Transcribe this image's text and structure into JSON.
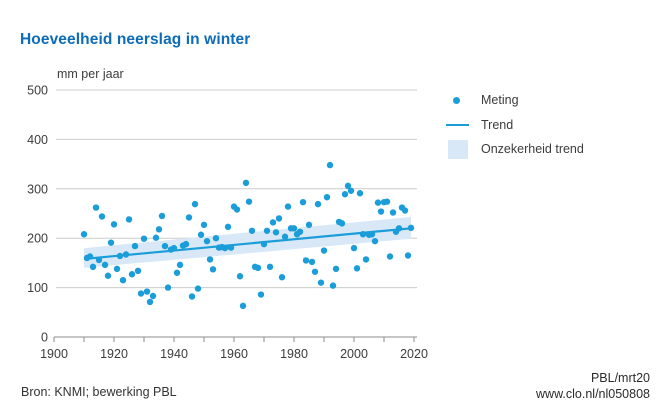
{
  "page": {
    "title": "Hoeveelheid neerslag in winter",
    "unit_label": "mm per jaar"
  },
  "legend": {
    "items": [
      {
        "label": "Meting",
        "swatch": "dot"
      },
      {
        "label": "Trend",
        "swatch": "line"
      },
      {
        "label": "Onzekerheid trend",
        "swatch": "band"
      }
    ]
  },
  "footer": {
    "source": "Bron: KNMI; bewerking PBL",
    "credit": "PBL/mrt20",
    "url": "www.clo.nl/nl050808"
  },
  "colors": {
    "title_blue": "#0c6cba",
    "point_blue": "#1b9dd9",
    "trend_blue": "#1b9dd9",
    "band_blue": "#d9e8f7",
    "grid_gray": "#cccccc",
    "axis_gray": "#8c8c8c",
    "text_gray": "#3c3c3c"
  },
  "chart_data": {
    "type": "scatter",
    "title": "Hoeveelheid neerslag in winter",
    "xlabel": "",
    "ylabel": "mm per jaar",
    "xlim": [
      1900,
      2020
    ],
    "ylim": [
      0,
      500
    ],
    "x_ticks": [
      1900,
      1920,
      1940,
      1960,
      1980,
      2000,
      2020
    ],
    "x_minor_tick_step": 10,
    "y_ticks": [
      0,
      100,
      200,
      300,
      400,
      500
    ],
    "grid": "horizontal",
    "legend_position": "right",
    "series": [
      {
        "name": "Meting",
        "type": "scatter",
        "points": [
          [
            1910,
            208
          ],
          [
            1911,
            160
          ],
          [
            1912,
            163
          ],
          [
            1913,
            142
          ],
          [
            1914,
            262
          ],
          [
            1915,
            156
          ],
          [
            1916,
            244
          ],
          [
            1917,
            146
          ],
          [
            1918,
            124
          ],
          [
            1919,
            191
          ],
          [
            1920,
            228
          ],
          [
            1921,
            138
          ],
          [
            1922,
            164
          ],
          [
            1923,
            115
          ],
          [
            1924,
            167
          ],
          [
            1925,
            238
          ],
          [
            1926,
            127
          ],
          [
            1927,
            184
          ],
          [
            1928,
            134
          ],
          [
            1929,
            88
          ],
          [
            1930,
            199
          ],
          [
            1931,
            92
          ],
          [
            1932,
            71
          ],
          [
            1933,
            83
          ],
          [
            1934,
            201
          ],
          [
            1935,
            218
          ],
          [
            1936,
            245
          ],
          [
            1937,
            184
          ],
          [
            1938,
            100
          ],
          [
            1939,
            177
          ],
          [
            1940,
            180
          ],
          [
            1941,
            130
          ],
          [
            1942,
            146
          ],
          [
            1943,
            185
          ],
          [
            1944,
            188
          ],
          [
            1945,
            242
          ],
          [
            1946,
            82
          ],
          [
            1947,
            269
          ],
          [
            1948,
            98
          ],
          [
            1949,
            207
          ],
          [
            1950,
            227
          ],
          [
            1951,
            194
          ],
          [
            1952,
            157
          ],
          [
            1953,
            137
          ],
          [
            1954,
            200
          ],
          [
            1955,
            181
          ],
          [
            1956,
            182
          ],
          [
            1957,
            180
          ],
          [
            1958,
            223
          ],
          [
            1959,
            181
          ],
          [
            1960,
            264
          ],
          [
            1961,
            258
          ],
          [
            1962,
            123
          ],
          [
            1963,
            63
          ],
          [
            1964,
            312
          ],
          [
            1965,
            274
          ],
          [
            1966,
            215
          ],
          [
            1967,
            142
          ],
          [
            1968,
            140
          ],
          [
            1969,
            86
          ],
          [
            1970,
            188
          ],
          [
            1971,
            215
          ],
          [
            1972,
            142
          ],
          [
            1973,
            232
          ],
          [
            1974,
            212
          ],
          [
            1975,
            240
          ],
          [
            1976,
            121
          ],
          [
            1977,
            203
          ],
          [
            1978,
            264
          ],
          [
            1979,
            220
          ],
          [
            1980,
            220
          ],
          [
            1981,
            208
          ],
          [
            1982,
            213
          ],
          [
            1983,
            273
          ],
          [
            1984,
            155
          ],
          [
            1985,
            227
          ],
          [
            1986,
            152
          ],
          [
            1987,
            132
          ],
          [
            1988,
            269
          ],
          [
            1989,
            110
          ],
          [
            1990,
            175
          ],
          [
            1991,
            283
          ],
          [
            1992,
            348
          ],
          [
            1993,
            104
          ],
          [
            1994,
            138
          ],
          [
            1995,
            233
          ],
          [
            1996,
            230
          ],
          [
            1997,
            289
          ],
          [
            1998,
            306
          ],
          [
            1999,
            296
          ],
          [
            2000,
            180
          ],
          [
            2001,
            139
          ],
          [
            2002,
            291
          ],
          [
            2003,
            208
          ],
          [
            2004,
            157
          ],
          [
            2005,
            207
          ],
          [
            2006,
            208
          ],
          [
            2007,
            194
          ],
          [
            2008,
            272
          ],
          [
            2009,
            254
          ],
          [
            2010,
            273
          ],
          [
            2011,
            274
          ],
          [
            2012,
            163
          ],
          [
            2013,
            252
          ],
          [
            2014,
            213
          ],
          [
            2015,
            220
          ],
          [
            2016,
            262
          ],
          [
            2017,
            256
          ],
          [
            2018,
            165
          ],
          [
            2019,
            221
          ]
        ]
      },
      {
        "name": "Trend",
        "type": "line",
        "points": [
          [
            1910,
            158
          ],
          [
            2019,
            220
          ]
        ]
      },
      {
        "name": "Onzekerheid trend",
        "type": "band",
        "points": [
          [
            1910,
            140,
            180
          ],
          [
            2019,
            199,
            243
          ]
        ]
      }
    ]
  }
}
